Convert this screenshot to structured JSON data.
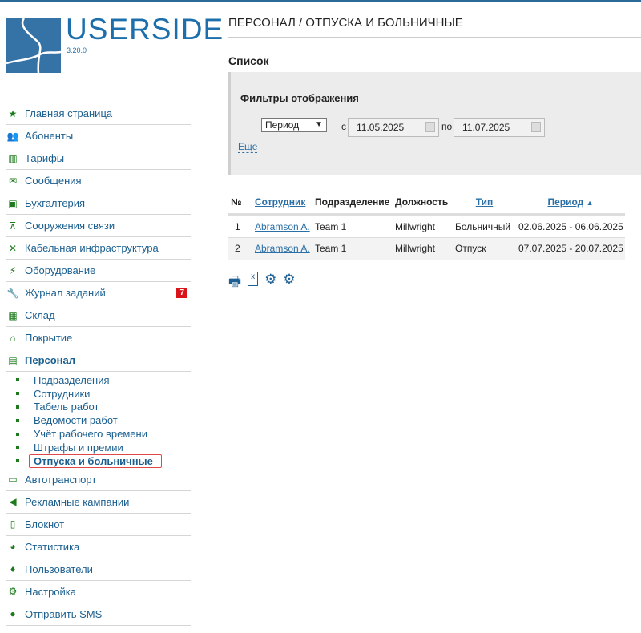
{
  "brand": {
    "name": "USERSIDE",
    "version": "3.20.0"
  },
  "sidebar": {
    "items": [
      {
        "label": "Главная страница",
        "icon": "star-icon"
      },
      {
        "label": "Абоненты",
        "icon": "users-icon"
      },
      {
        "label": "Тарифы",
        "icon": "bar-chart-icon"
      },
      {
        "label": "Сообщения",
        "icon": "envelope-icon"
      },
      {
        "label": "Бухгалтерия",
        "icon": "money-icon"
      },
      {
        "label": "Сооружения связи",
        "icon": "sitemap-icon"
      },
      {
        "label": "Кабельная инфраструктура",
        "icon": "cable-icon"
      },
      {
        "label": "Оборудование",
        "icon": "plug-icon"
      },
      {
        "label": "Журнал заданий",
        "icon": "wrench-icon",
        "badge": "7"
      },
      {
        "label": "Склад",
        "icon": "box-icon"
      },
      {
        "label": "Покрытие",
        "icon": "home-icon"
      },
      {
        "label": "Персонал",
        "icon": "briefcase-icon"
      }
    ],
    "sub": [
      "Подразделения",
      "Сотрудники",
      "Табель работ",
      "Ведомости работ",
      "Учёт рабочего времени",
      "Штрафы и премии",
      "Отпуска и больничные"
    ],
    "items2": [
      {
        "label": "Автотранспорт",
        "icon": "bus-icon"
      },
      {
        "label": "Рекламные кампании",
        "icon": "bullhorn-icon"
      },
      {
        "label": "Блокнот",
        "icon": "note-icon"
      },
      {
        "label": "Статистика",
        "icon": "pie-chart-icon"
      },
      {
        "label": "Пользователи",
        "icon": "microphone-icon"
      },
      {
        "label": "Настройка",
        "icon": "gear-icon"
      },
      {
        "label": "Отправить SMS",
        "icon": "comment-icon"
      }
    ]
  },
  "main": {
    "title": "ПЕРСОНАЛ / ОТПУСКА И БОЛЬНИЧНЫЕ",
    "list": "Список",
    "filters": {
      "title": "Фильтры отображения",
      "select": "Период",
      "from_label": "с",
      "from": "11.05.2025",
      "to_label": "по",
      "to": "11.07.2025",
      "more": "Еще"
    },
    "table": {
      "headers": [
        "№",
        "Сотрудник",
        "Подразделение",
        "Должность",
        "Тип",
        "Период"
      ],
      "rows": [
        [
          "1",
          "Abramson A.",
          "Team 1",
          "Millwright",
          "Больничный",
          "02.06.2025 - 06.06.2025"
        ],
        [
          "2",
          "Abramson A.",
          "Team 1",
          "Millwright",
          "Отпуск",
          "07.07.2025 - 20.07.2025"
        ]
      ]
    }
  }
}
